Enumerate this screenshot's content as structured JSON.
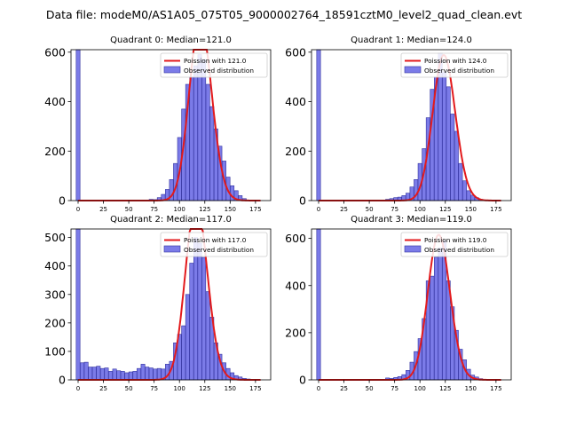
{
  "figure": {
    "title": "Data file: modeM0/AS1A05_075T05_9000002764_18591cztM0_level2_quad_clean.evt"
  },
  "colors": {
    "bar_fill": "#7b7be8",
    "bar_edge": "#3333a0",
    "fit_line": "#e31a1c"
  },
  "chart_data": [
    {
      "type": "bar",
      "title": "Quadrant 0: Median=121.0",
      "xlim": [
        -7,
        190
      ],
      "ylim": [
        0,
        610
      ],
      "xticks": [
        0,
        25,
        50,
        75,
        100,
        125,
        150,
        175
      ],
      "yticks": [
        0,
        200,
        400,
        600
      ],
      "bin_width": 3.8,
      "bin_centers": [
        0,
        72,
        76,
        80,
        84,
        88,
        92,
        96,
        100,
        104,
        108,
        112,
        116,
        120,
        124,
        128,
        132,
        136,
        140,
        144,
        148,
        152,
        156,
        160,
        164
      ],
      "counts": [
        610,
        5,
        4,
        12,
        25,
        45,
        85,
        150,
        255,
        370,
        470,
        500,
        545,
        590,
        570,
        470,
        380,
        290,
        220,
        160,
        95,
        60,
        40,
        20,
        8
      ],
      "fit": {
        "label": "Poission with 121.0",
        "mean": 121.0,
        "scale": 0.985
      },
      "legend": [
        "Poission with 121.0",
        "Observed distribution"
      ]
    },
    {
      "type": "bar",
      "title": "Quadrant 1: Median=124.0",
      "xlim": [
        -7,
        190
      ],
      "ylim": [
        0,
        610
      ],
      "xticks": [
        0,
        25,
        50,
        75,
        100,
        125,
        150,
        175
      ],
      "yticks": [
        0,
        200,
        400,
        600
      ],
      "bin_width": 3.8,
      "bin_centers": [
        0,
        68,
        72,
        76,
        80,
        84,
        88,
        92,
        96,
        100,
        104,
        108,
        112,
        116,
        120,
        124,
        128,
        132,
        136,
        140,
        144,
        148,
        152,
        156,
        160
      ],
      "counts": [
        610,
        5,
        8,
        12,
        14,
        20,
        30,
        55,
        85,
        150,
        210,
        335,
        450,
        500,
        595,
        520,
        460,
        350,
        280,
        150,
        80,
        40,
        22,
        12,
        5
      ],
      "fit": {
        "label": "Poission with 124.0",
        "mean": 124.0,
        "scale": 0.985
      },
      "legend": [
        "Poission with 124.0",
        "Observed distribution"
      ]
    },
    {
      "type": "bar",
      "title": "Quadrant 2: Median=117.0",
      "xlim": [
        -7,
        190
      ],
      "ylim": [
        0,
        530
      ],
      "xticks": [
        0,
        25,
        50,
        75,
        100,
        125,
        150,
        175
      ],
      "yticks": [
        0,
        100,
        200,
        300,
        400,
        500
      ],
      "bin_width": 3.8,
      "bin_centers": [
        0,
        4,
        8,
        12,
        16,
        20,
        24,
        28,
        32,
        36,
        40,
        44,
        48,
        52,
        56,
        60,
        64,
        68,
        72,
        76,
        80,
        84,
        88,
        92,
        96,
        100,
        104,
        108,
        112,
        116,
        120,
        124,
        128,
        132,
        136,
        140,
        144,
        148,
        152,
        156,
        160,
        164,
        168
      ],
      "counts": [
        530,
        60,
        62,
        45,
        45,
        48,
        40,
        42,
        30,
        38,
        32,
        30,
        25,
        28,
        30,
        40,
        55,
        45,
        42,
        38,
        40,
        38,
        55,
        65,
        130,
        160,
        190,
        300,
        410,
        500,
        480,
        430,
        310,
        220,
        130,
        90,
        60,
        40,
        25,
        15,
        10,
        5,
        3
      ],
      "fit": {
        "label": "Poission with 117.0",
        "mean": 117.0,
        "scale": 0.995
      },
      "legend": [
        "Poission with 117.0",
        "Observed distribution"
      ]
    },
    {
      "type": "bar",
      "title": "Quadrant 3: Median=119.0",
      "xlim": [
        -7,
        190
      ],
      "ylim": [
        0,
        640
      ],
      "xticks": [
        0,
        25,
        50,
        75,
        100,
        125,
        150,
        175
      ],
      "yticks": [
        0,
        200,
        400,
        600
      ],
      "bin_width": 3.8,
      "bin_centers": [
        0,
        68,
        72,
        76,
        80,
        84,
        88,
        92,
        96,
        100,
        104,
        108,
        112,
        116,
        120,
        124,
        128,
        132,
        136,
        140,
        144,
        148,
        152,
        156,
        160
      ],
      "counts": [
        640,
        8,
        6,
        10,
        14,
        22,
        40,
        75,
        120,
        175,
        260,
        420,
        440,
        520,
        560,
        590,
        420,
        310,
        210,
        130,
        85,
        45,
        20,
        12,
        5
      ],
      "fit": {
        "label": "Poission with 119.0",
        "mean": 119.0,
        "scale": 0.985
      },
      "legend": [
        "Poission with 119.0",
        "Observed distribution"
      ]
    }
  ]
}
